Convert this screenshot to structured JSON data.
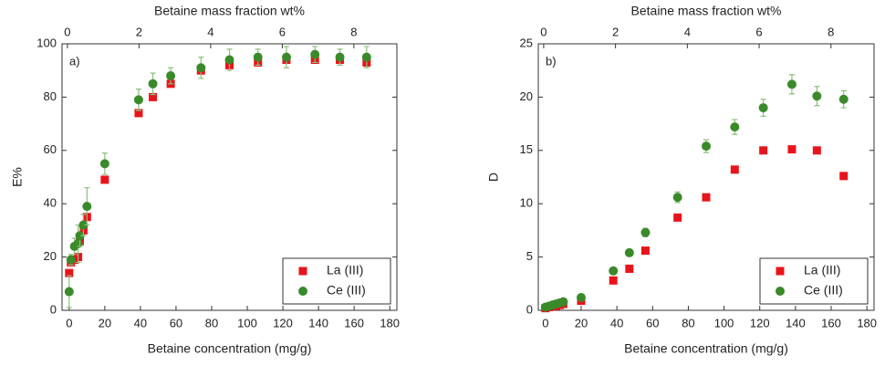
{
  "chart_data": [
    {
      "type": "scatter",
      "panel_label": "a)",
      "xlabel": "Betaine concentration (mg/g)",
      "ylabel": "E%",
      "top_xlabel": "Betaine mass fraction wt%",
      "xlim": [
        -4,
        184
      ],
      "xticks": [
        0,
        20,
        40,
        60,
        80,
        100,
        120,
        140,
        160,
        180
      ],
      "top_xlim": [
        -0.15,
        9.2
      ],
      "top_xticks": [
        0,
        2,
        4,
        6,
        8
      ],
      "ylim": [
        0,
        100
      ],
      "yticks": [
        0,
        20,
        40,
        60,
        80,
        100
      ],
      "legend": "lower right",
      "series": [
        {
          "name": "La (III)",
          "color": "#e8141b",
          "marker": "square",
          "x": [
            0,
            1,
            3,
            5,
            6,
            8,
            10,
            20,
            39,
            47,
            57,
            74,
            90,
            106,
            122,
            138,
            152,
            167
          ],
          "values": [
            14,
            18,
            19,
            20,
            26,
            30,
            35,
            49,
            74,
            80,
            85,
            90,
            92,
            93,
            94,
            94,
            94,
            93
          ]
        },
        {
          "name": "Ce (III)",
          "color": "#3a8a2a",
          "marker": "circle",
          "x": [
            0,
            1,
            3,
            5,
            6,
            8,
            10,
            20,
            39,
            47,
            57,
            74,
            90,
            106,
            122,
            138,
            152,
            167
          ],
          "values": [
            7,
            19,
            24,
            25,
            28,
            32,
            39,
            55,
            79,
            85,
            88,
            91,
            94,
            95,
            95,
            96,
            95,
            95
          ],
          "errors": [
            6,
            2,
            3,
            7,
            4,
            4,
            7,
            4,
            4,
            4,
            3,
            4,
            4,
            3,
            4,
            3,
            3,
            4
          ]
        }
      ]
    },
    {
      "type": "scatter",
      "panel_label": "b)",
      "xlabel": "Betaine concentration (mg/g)",
      "ylabel": "D",
      "top_xlabel": "Betaine mass fraction wt%",
      "xlim": [
        -4,
        184
      ],
      "xticks": [
        0,
        20,
        40,
        60,
        80,
        100,
        120,
        140,
        160,
        180
      ],
      "top_xlim": [
        -0.15,
        9.2
      ],
      "top_xticks": [
        0,
        2,
        4,
        6,
        8
      ],
      "ylim": [
        0,
        25
      ],
      "yticks": [
        0,
        5,
        10,
        15,
        20,
        25
      ],
      "legend": "lower right",
      "series": [
        {
          "name": "La (III)",
          "color": "#e8141b",
          "marker": "square",
          "x": [
            0,
            2,
            4,
            6,
            8,
            10,
            20,
            38,
            47,
            56,
            74,
            90,
            106,
            122,
            138,
            152,
            167
          ],
          "values": [
            0.2,
            0.3,
            0.4,
            0.4,
            0.5,
            0.6,
            0.9,
            2.8,
            3.9,
            5.6,
            8.7,
            10.6,
            13.2,
            15,
            15.1,
            15,
            12.6
          ]
        },
        {
          "name": "Ce (III)",
          "color": "#3a8a2a",
          "marker": "circle",
          "x": [
            0,
            2,
            4,
            6,
            8,
            10,
            20,
            38,
            47,
            56,
            74,
            90,
            106,
            122,
            138,
            152,
            167
          ],
          "values": [
            0.3,
            0.4,
            0.5,
            0.6,
            0.7,
            0.8,
            1.2,
            3.7,
            5.4,
            7.3,
            10.6,
            15.4,
            17.2,
            19,
            21.2,
            20.1,
            19.8
          ],
          "errors": [
            0.1,
            0.1,
            0.1,
            0.1,
            0.1,
            0.1,
            0.3,
            0.3,
            0.3,
            0.4,
            0.5,
            0.6,
            0.7,
            0.8,
            0.9,
            0.9,
            0.8
          ]
        }
      ]
    }
  ]
}
